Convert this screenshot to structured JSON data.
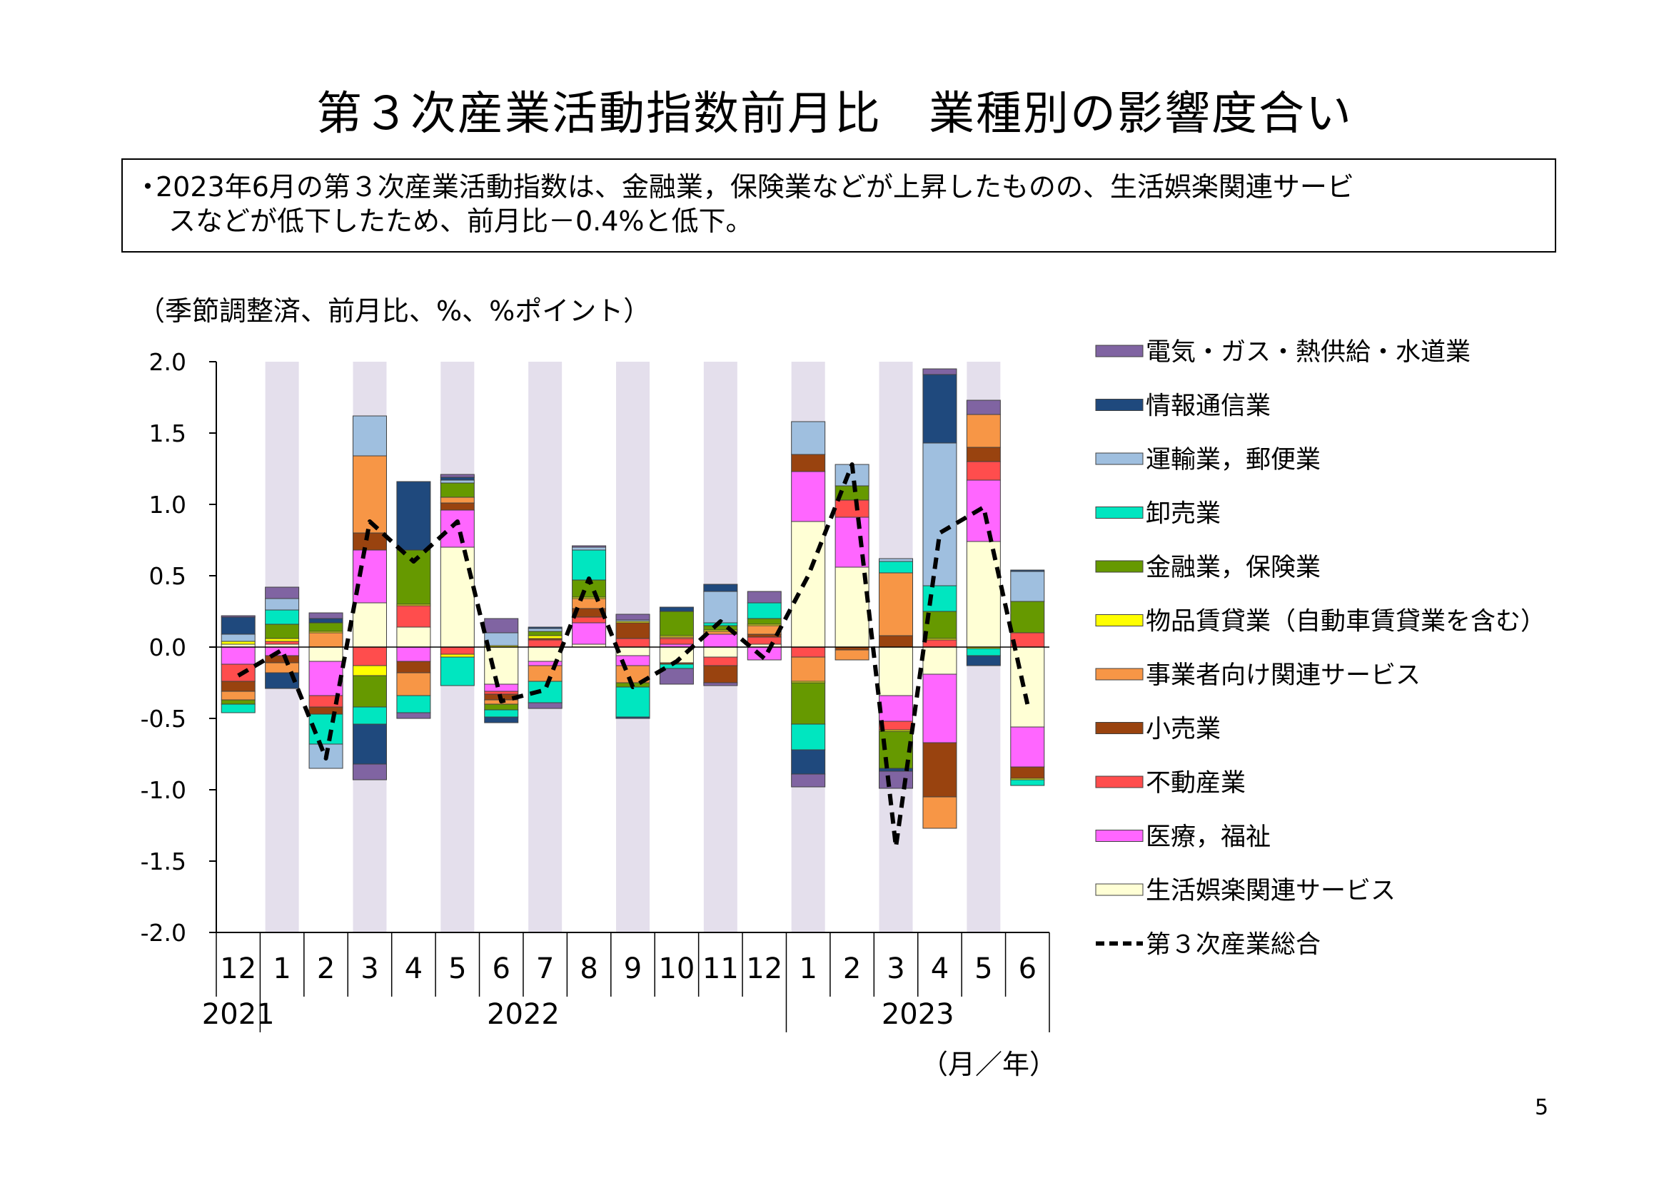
{
  "title": "第３次産業活動指数前月比　業種別の影響度合い",
  "note": {
    "bullet": "・",
    "line1": "2023年6月の第３次産業活動指数は、金融業，保険業などが上昇したものの、生活娯楽関連サービ",
    "line2": "スなどが低下したため、前月比－0.4%と低下。"
  },
  "unit_label": "（季節調整済、前月比、%、%ポイント）",
  "page_number": "5",
  "chart_data": {
    "type": "bar",
    "stacked": true,
    "categories": [
      "12",
      "1",
      "2",
      "3",
      "4",
      "5",
      "6",
      "7",
      "8",
      "9",
      "10",
      "11",
      "12",
      "1",
      "2",
      "3",
      "4",
      "5",
      "6"
    ],
    "year_labels": [
      {
        "label": "2021",
        "at_index": 0
      },
      {
        "label": "2022",
        "at_index": 6.5
      },
      {
        "label": "2023",
        "at_index": 15.5
      }
    ],
    "x_unit_label": "（月／年）",
    "ylim": [
      -2.0,
      2.0
    ],
    "y_ticks": [
      "2.0",
      "1.5",
      "1.0",
      "0.5",
      "0.0",
      "-0.5",
      "-1.0",
      "-1.5",
      "-2.0"
    ],
    "series": [
      {
        "name": "生活娯楽関連サービス",
        "color": "#ffffd5",
        "values": [
          0.02,
          0.02,
          -0.1,
          0.31,
          0.14,
          0.7,
          -0.26,
          -0.1,
          0.02,
          -0.06,
          -0.11,
          -0.07,
          0.02,
          0.88,
          0.56,
          -0.34,
          -0.19,
          0.74,
          -0.56
        ]
      },
      {
        "name": "医療，福祉",
        "color": "#ff66ff",
        "values": [
          -0.12,
          -0.06,
          -0.24,
          0.37,
          -0.1,
          0.26,
          -0.05,
          -0.03,
          0.15,
          -0.07,
          0.02,
          0.09,
          -0.09,
          0.35,
          0.35,
          -0.18,
          -0.48,
          0.43,
          -0.28
        ]
      },
      {
        "name": "不動産業",
        "color": "#ff4d4d",
        "values": [
          -0.12,
          0.02,
          -0.08,
          -0.13,
          0.15,
          -0.05,
          -0.02,
          0.05,
          0.04,
          0.06,
          0.04,
          -0.06,
          0.05,
          -0.07,
          0.12,
          -0.06,
          0.05,
          0.13,
          0.1
        ]
      },
      {
        "name": "小売業",
        "color": "#99430f",
        "values": [
          -0.07,
          -0.05,
          -0.05,
          0.12,
          -0.08,
          0.05,
          -0.04,
          0.01,
          0.06,
          0.11,
          -0.01,
          -0.12,
          0.02,
          0.12,
          -0.02,
          0.08,
          -0.38,
          0.1,
          -0.08
        ]
      },
      {
        "name": "事業者向け関連サービス",
        "color": "#f79646",
        "values": [
          -0.06,
          -0.07,
          0.1,
          0.54,
          -0.16,
          0.04,
          -0.03,
          -0.11,
          0.07,
          -0.12,
          0.01,
          0.02,
          0.06,
          -0.17,
          -0.07,
          0.44,
          -0.22,
          0.23,
          0.0
        ]
      },
      {
        "name": "物品賃貸業（自動車賃貸業を含む）",
        "color": "#ffff00",
        "values": [
          0.02,
          0.02,
          0.01,
          -0.07,
          0.01,
          -0.02,
          0.01,
          0.02,
          0.01,
          0.01,
          0.01,
          0.01,
          0.01,
          -0.01,
          0.0,
          -0.01,
          0.01,
          -0.01,
          -0.01
        ]
      },
      {
        "name": "金融業，保険業",
        "color": "#669900",
        "values": [
          -0.03,
          0.1,
          0.06,
          -0.22,
          0.38,
          0.1,
          -0.04,
          0.03,
          0.12,
          -0.03,
          0.17,
          0.03,
          0.04,
          -0.29,
          0.1,
          -0.26,
          0.19,
          0.0,
          0.22
        ]
      },
      {
        "name": "卸売業",
        "color": "#00e6c0",
        "values": [
          -0.06,
          0.1,
          -0.21,
          -0.12,
          -0.12,
          -0.2,
          -0.05,
          -0.15,
          0.21,
          -0.21,
          -0.03,
          0.02,
          0.11,
          -0.18,
          0.0,
          0.08,
          0.18,
          -0.05,
          -0.04
        ]
      },
      {
        "name": "運輸業，郵便業",
        "color": "#9fbfdf",
        "values": [
          0.05,
          0.08,
          -0.17,
          0.28,
          0.0,
          0.02,
          0.09,
          0.02,
          0.02,
          0.01,
          0.0,
          0.22,
          0.0,
          0.23,
          0.15,
          0.02,
          1.0,
          0.0,
          0.21
        ]
      },
      {
        "name": "情報通信業",
        "color": "#1f497d",
        "values": [
          0.12,
          -0.11,
          0.03,
          -0.28,
          0.48,
          0.02,
          -0.04,
          0.01,
          0.0,
          -0.01,
          0.03,
          0.05,
          0.0,
          -0.17,
          0.0,
          -0.02,
          0.48,
          -0.07,
          0.01
        ]
      },
      {
        "name": "電気・ガス・熱供給・水道業",
        "color": "#8064a2",
        "values": [
          0.01,
          0.08,
          0.04,
          -0.11,
          -0.04,
          0.02,
          0.1,
          -0.04,
          0.01,
          0.04,
          -0.11,
          -0.02,
          0.08,
          -0.09,
          0.0,
          -0.12,
          0.04,
          0.1,
          0.0
        ]
      }
    ],
    "total_line": {
      "name": "第３次産業総合",
      "color": "#000000",
      "style": "dashed",
      "values": [
        -0.2,
        -0.02,
        -0.78,
        0.88,
        0.6,
        0.88,
        -0.38,
        -0.3,
        0.48,
        -0.28,
        -0.1,
        0.18,
        -0.08,
        0.5,
        1.28,
        -1.4,
        0.8,
        0.98,
        -0.4
      ]
    },
    "shaded_months": [
      1,
      3,
      5,
      7,
      9,
      11,
      13,
      15,
      17
    ],
    "shading_color": "#e4dfec",
    "legend_order": [
      "電気・ガス・熱供給・水道業",
      "情報通信業",
      "運輸業，郵便業",
      "卸売業",
      "金融業，保険業",
      "物品賃貸業（自動車賃貸業を含む）",
      "事業者向け関連サービス",
      "小売業",
      "不動産業",
      "医療，福祉",
      "生活娯楽関連サービス",
      "第３次産業総合"
    ],
    "legend_position": "right"
  }
}
